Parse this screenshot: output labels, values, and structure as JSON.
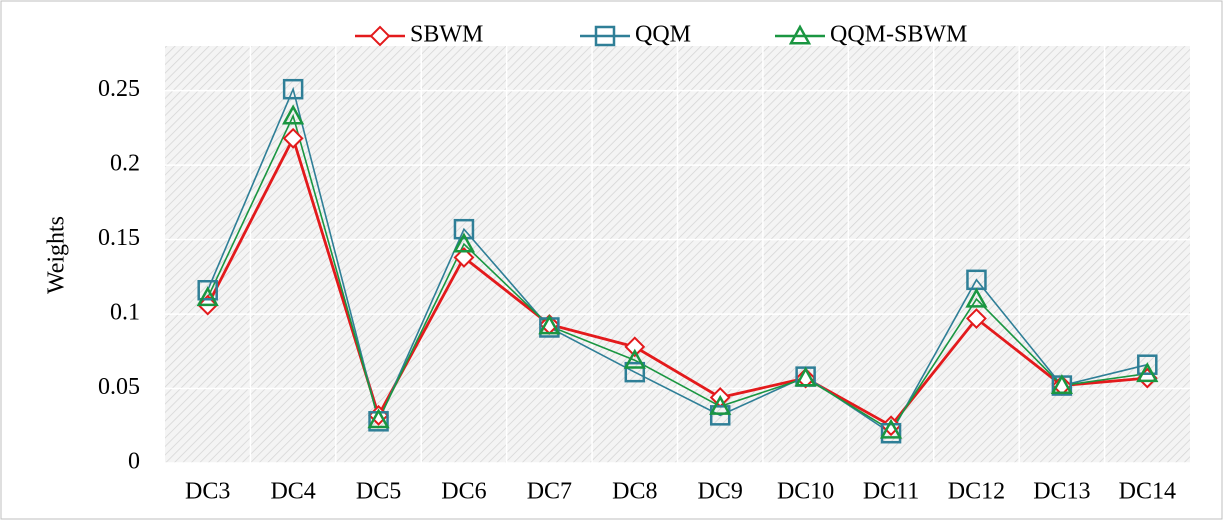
{
  "chart_data": {
    "type": "line",
    "y_label": "Weights",
    "categories": [
      "DC3",
      "DC4",
      "DC5",
      "DC6",
      "DC7",
      "DC8",
      "DC9",
      "DC10",
      "DC11",
      "DC12",
      "DC13",
      "DC14"
    ],
    "series": [
      {
        "name": "SBWM",
        "color": "#e31a1c",
        "marker": "diamond",
        "values": [
          0.106,
          0.218,
          0.032,
          0.138,
          0.093,
          0.078,
          0.044,
          0.057,
          0.025,
          0.097,
          0.052,
          0.057
        ]
      },
      {
        "name": "QQM",
        "color": "#2f7f97",
        "marker": "square",
        "values": [
          0.116,
          0.251,
          0.028,
          0.157,
          0.091,
          0.061,
          0.032,
          0.058,
          0.02,
          0.123,
          0.052,
          0.066
        ]
      },
      {
        "name": "QQM-SBWM",
        "color": "#1a9641",
        "marker": "triangle",
        "values": [
          0.111,
          0.233,
          0.029,
          0.147,
          0.092,
          0.069,
          0.038,
          0.057,
          0.022,
          0.11,
          0.052,
          0.06
        ]
      }
    ],
    "ylim": [
      0,
      0.28
    ],
    "yticks": [
      0,
      0.05,
      0.1,
      0.15,
      0.2,
      0.25
    ],
    "grid": true,
    "legend": "top"
  }
}
